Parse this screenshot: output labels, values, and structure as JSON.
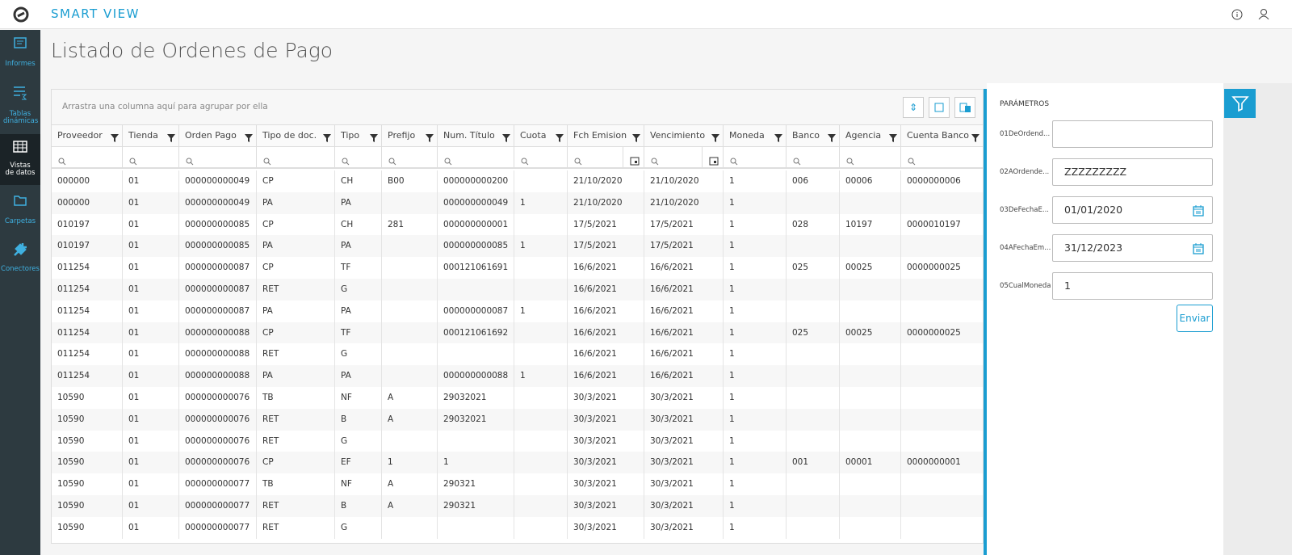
{
  "app": {
    "brand": "SMART VIEW"
  },
  "sidebar": [
    "Informes",
    "Tablas dinámicas",
    "Vistas de datos",
    "Carpetas",
    "Conectores"
  ],
  "page": {
    "title": "Listado de Ordenes de Pago"
  },
  "grid": {
    "group_hint": "Arrastra una columna aquí para agrupar por ella",
    "columns": [
      "Proveedor",
      "Tienda",
      "Orden Pago",
      "Tipo de doc.",
      "Tipo",
      "Prefijo",
      "Num. Título",
      "Cuota",
      "Fch Emision",
      "Vencimiento",
      "Moneda",
      "Banco",
      "Agencia",
      "Cuenta Banco"
    ],
    "rows": [
      [
        "000000",
        "01",
        "000000000049",
        "CP",
        "CH",
        "B00",
        "000000000200",
        null,
        "21/10/2020",
        "21/10/2020",
        "1",
        "006",
        "00006",
        "0000000006"
      ],
      [
        "000000",
        "01",
        "000000000049",
        "PA",
        "PA",
        null,
        "000000000049",
        "1",
        "21/10/2020",
        "21/10/2020",
        "1",
        null,
        null,
        null
      ],
      [
        "010197",
        "01",
        "000000000085",
        "CP",
        "CH",
        "281",
        "000000000001",
        null,
        "17/5/2021",
        "17/5/2021",
        "1",
        "028",
        "10197",
        "0000010197"
      ],
      [
        "010197",
        "01",
        "000000000085",
        "PA",
        "PA",
        null,
        "000000000085",
        "1",
        "17/5/2021",
        "17/5/2021",
        "1",
        null,
        null,
        null
      ],
      [
        "011254",
        "01",
        "000000000087",
        "CP",
        "TF",
        null,
        "000121061691",
        null,
        "16/6/2021",
        "16/6/2021",
        "1",
        "025",
        "00025",
        "0000000025"
      ],
      [
        "011254",
        "01",
        "000000000087",
        "RET",
        "G",
        null,
        null,
        null,
        "16/6/2021",
        "16/6/2021",
        "1",
        null,
        null,
        null
      ],
      [
        "011254",
        "01",
        "000000000087",
        "PA",
        "PA",
        null,
        "000000000087",
        "1",
        "16/6/2021",
        "16/6/2021",
        "1",
        null,
        null,
        null
      ],
      [
        "011254",
        "01",
        "000000000088",
        "CP",
        "TF",
        null,
        "000121061692",
        null,
        "16/6/2021",
        "16/6/2021",
        "1",
        "025",
        "00025",
        "0000000025"
      ],
      [
        "011254",
        "01",
        "000000000088",
        "RET",
        "G",
        null,
        null,
        null,
        "16/6/2021",
        "16/6/2021",
        "1",
        null,
        null,
        null
      ],
      [
        "011254",
        "01",
        "000000000088",
        "PA",
        "PA",
        null,
        "000000000088",
        "1",
        "16/6/2021",
        "16/6/2021",
        "1",
        null,
        null,
        null
      ],
      [
        "10590",
        "01",
        "000000000076",
        "TB",
        "NF",
        "A",
        "29032021",
        null,
        "30/3/2021",
        "30/3/2021",
        "1",
        null,
        null,
        null
      ],
      [
        "10590",
        "01",
        "000000000076",
        "RET",
        "B",
        "A",
        "29032021",
        null,
        "30/3/2021",
        "30/3/2021",
        "1",
        null,
        null,
        null
      ],
      [
        "10590",
        "01",
        "000000000076",
        "RET",
        "G",
        null,
        null,
        null,
        "30/3/2021",
        "30/3/2021",
        "1",
        null,
        null,
        null
      ],
      [
        "10590",
        "01",
        "000000000076",
        "CP",
        "EF",
        "1",
        "1",
        null,
        "30/3/2021",
        "30/3/2021",
        "1",
        "001",
        "00001",
        "0000000001"
      ],
      [
        "10590",
        "01",
        "000000000077",
        "TB",
        "NF",
        "A",
        "290321",
        null,
        "30/3/2021",
        "30/3/2021",
        "1",
        null,
        null,
        null
      ],
      [
        "10590",
        "01",
        "000000000077",
        "RET",
        "B",
        "A",
        "290321",
        null,
        "30/3/2021",
        "30/3/2021",
        "1",
        null,
        null,
        null
      ],
      [
        "10590",
        "01",
        "000000000077",
        "RET",
        "G",
        null,
        null,
        null,
        "30/3/2021",
        "30/3/2021",
        "1",
        null,
        null,
        null
      ]
    ]
  },
  "params": {
    "title": "PARÁMETROS",
    "fields": [
      {
        "label": "01DeOrdend..."
      },
      {
        "label": "02AOrdende...",
        "value": "ZZZZZZZZZ"
      },
      {
        "label": "03DeFechaE...",
        "value": "01/01/2020"
      },
      {
        "label": "04AFechaEm...",
        "value": "31/12/2023"
      },
      {
        "label": "05CualMoneda",
        "value": "1"
      }
    ],
    "button": "Enviar"
  }
}
